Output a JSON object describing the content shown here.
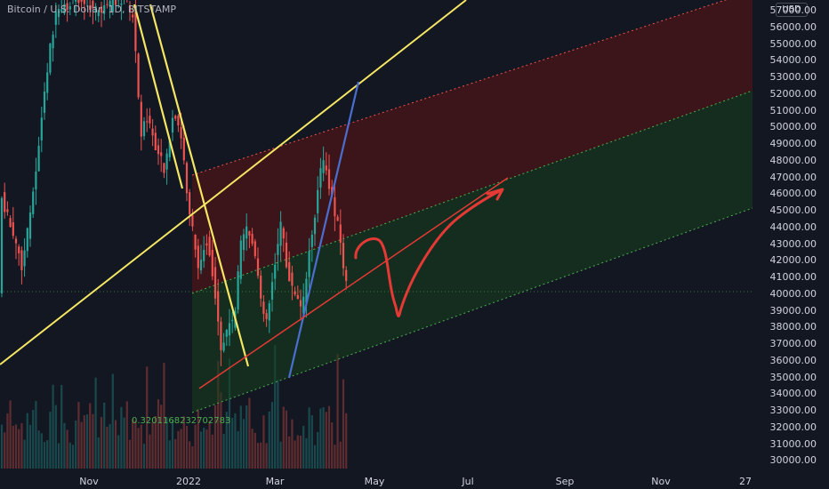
{
  "header": {
    "title": "Bitcoin / U.S. Dollar, 1D, BITSTAMP",
    "currency_button": "USD"
  },
  "price_axis": {
    "labels": [
      "57000.00",
      "56000.00",
      "55000.00",
      "54000.00",
      "53000.00",
      "52000.00",
      "51000.00",
      "50000.00",
      "49000.00",
      "48000.00",
      "47000.00",
      "46000.00",
      "45000.00",
      "44000.00",
      "43000.00",
      "42000.00",
      "41000.00",
      "40000.00",
      "39000.00",
      "38000.00",
      "37000.00",
      "36000.00",
      "35000.00",
      "34000.00",
      "33000.00",
      "32000.00",
      "31000.00",
      "30000.00"
    ]
  },
  "time_axis": {
    "labels": [
      "Nov",
      "2022",
      "Mar",
      "May",
      "Jul",
      "Sep",
      "Nov",
      "27"
    ]
  },
  "annotation": {
    "fib_value": "0.3201168232702783"
  },
  "chart_data": {
    "type": "candlestick",
    "title": "Bitcoin / U.S. Dollar, 1D, BITSTAMP",
    "ylim": [
      29300,
      57800
    ],
    "y_ticks": [
      57000,
      56000,
      55000,
      54000,
      53000,
      52000,
      51000,
      50000,
      49000,
      48000,
      47000,
      46000,
      45000,
      44000,
      43000,
      42000,
      41000,
      40000,
      39000,
      38000,
      37000,
      36000,
      35000,
      34000,
      33000,
      32000,
      31000,
      30000
    ],
    "price_guides": [
      {
        "name": "last_price_dotted",
        "value": 40100
      }
    ],
    "colors": {
      "up": "#26a69a",
      "down": "#ef5350",
      "background": "#131722",
      "yellow_lines": "#f5e663",
      "blue_line": "#4a6fd1",
      "red_arrow": "#e53935",
      "upper_channel": "#5a1a1a",
      "lower_channel": "#1b3b22"
    }
  }
}
